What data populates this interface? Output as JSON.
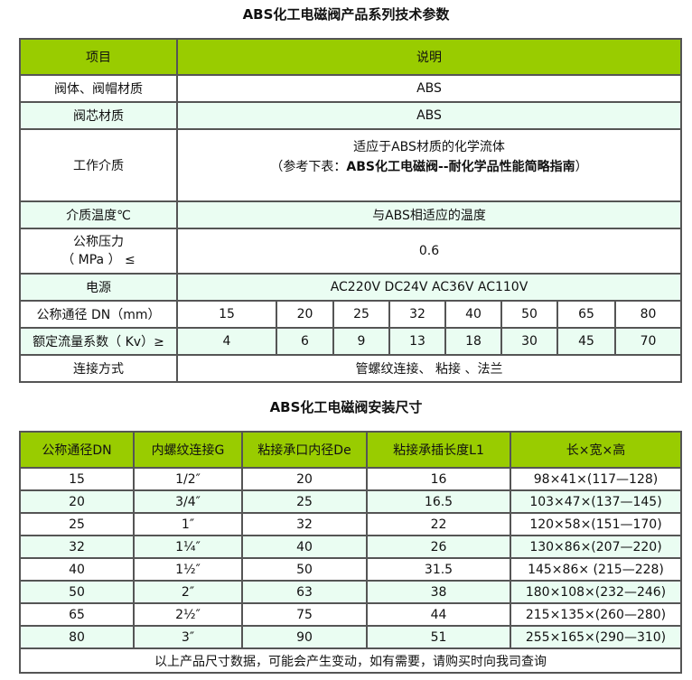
{
  "spec_table": {
    "title": "ABS化工电磁阀产品系列技术参数",
    "header": {
      "item": "项目",
      "desc": "说明"
    },
    "body_material": {
      "label": "阀体、阀帽材质",
      "value": "ABS"
    },
    "core_material": {
      "label": "阀芯材质",
      "value": "ABS"
    },
    "medium": {
      "label": "工作介质",
      "line1": "适应于ABS材质的化学流体",
      "line2_prefix": "（参考下表：",
      "line2_bold": "ABS化工电磁阀--耐化学品性能简略指南",
      "line2_suffix": "）"
    },
    "temperature": {
      "label": "介质温度℃",
      "value": "与ABS相适应的温度"
    },
    "pressure": {
      "label_line1": "公称压力",
      "label_line2": "（ MPa ） ≤",
      "value": "0.6"
    },
    "power": {
      "label": "电源",
      "value": "AC220V DC24V AC36V AC110V"
    },
    "dn": {
      "label": "公称通径 DN（mm）",
      "values": [
        "15",
        "20",
        "25",
        "32",
        "40",
        "50",
        "65",
        "80"
      ]
    },
    "kv": {
      "label": "额定流量系数（ Kv）≥",
      "values": [
        "4",
        "6",
        "9",
        "13",
        "18",
        "30",
        "45",
        "70"
      ]
    },
    "connection": {
      "label": "连接方式",
      "value": "管螺纹连接、 粘接 、法兰"
    }
  },
  "size_table": {
    "title": "ABS化工电磁阀安装尺寸",
    "headers": [
      "公称通径DN",
      "内螺纹连接G",
      "粘接承口内径De",
      "粘接承插长度L1",
      "长×宽×高"
    ],
    "rows": [
      [
        "15",
        "1/2″",
        "20",
        "16",
        "98×41×(117—128)"
      ],
      [
        "20",
        "3/4″",
        "25",
        "16.5",
        "103×47×(137—145)"
      ],
      [
        "25",
        "1″",
        "32",
        "22",
        "120×58×(151—170)"
      ],
      [
        "32",
        "1¼″",
        "40",
        "26",
        "130×86×(207—220)"
      ],
      [
        "40",
        "1½″",
        "50",
        "31.5",
        "145×86× (215—228)"
      ],
      [
        "50",
        "2″",
        "63",
        "38",
        "180×108×(232—246)"
      ],
      [
        "65",
        "2½″",
        "75",
        "44",
        "215×135×(260—280)"
      ],
      [
        "80",
        "3″",
        "90",
        "51",
        "255×165×(290—310)"
      ]
    ],
    "footer": "以上产品尺寸数据，可能会产生变动，如有需要，请购买时向我司查询"
  },
  "colors": {
    "header_bg": "#99cc00",
    "alt_row_bg": "#eafdf2",
    "border": "#555555"
  }
}
